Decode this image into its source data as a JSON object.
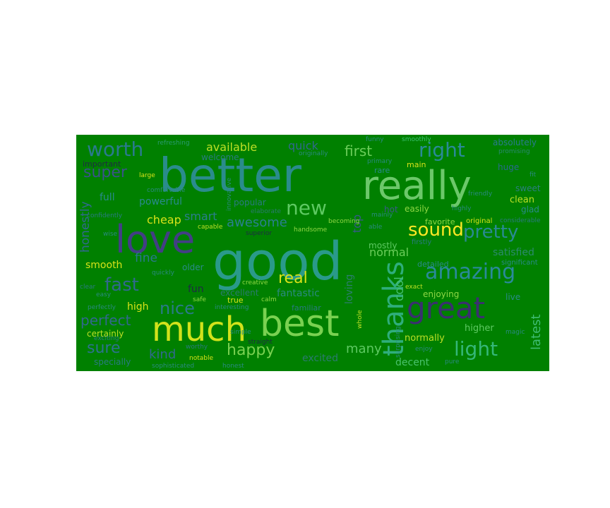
{
  "wordcloud": {
    "background": "#008000",
    "words": [
      {
        "text": "better",
        "color": "#2a8c8c"
      },
      {
        "text": "good",
        "color": "#2a9a8a"
      },
      {
        "text": "really",
        "color": "#6cc86a"
      },
      {
        "text": "love",
        "color": "#433e85"
      },
      {
        "text": "best",
        "color": "#7ad151"
      },
      {
        "text": "much",
        "color": "#d2e21b"
      },
      {
        "text": "great",
        "color": "#3b2f70"
      },
      {
        "text": "thanks",
        "color": "#2fae7c"
      },
      {
        "text": "amazing",
        "color": "#2a8a9a"
      },
      {
        "text": "worth",
        "color": "#2a7a8e"
      },
      {
        "text": "right",
        "color": "#2a8a98"
      },
      {
        "text": "new",
        "color": "#5ec962"
      },
      {
        "text": "light",
        "color": "#35b779"
      },
      {
        "text": "pretty",
        "color": "#2a8a94"
      },
      {
        "text": "sound",
        "color": "#fde725"
      },
      {
        "text": "fast",
        "color": "#31688e"
      },
      {
        "text": "nice",
        "color": "#2a7a8a"
      },
      {
        "text": "happy",
        "color": "#7ad151"
      },
      {
        "text": "super",
        "color": "#3b528b"
      },
      {
        "text": "first",
        "color": "#6ccd5a"
      },
      {
        "text": "real",
        "color": "#d8e219"
      },
      {
        "text": "awesome",
        "color": "#2a8090"
      },
      {
        "text": "perfect",
        "color": "#31688e"
      },
      {
        "text": "sure",
        "color": "#2c728e"
      },
      {
        "text": "many",
        "color": "#5ec962"
      },
      {
        "text": "kind",
        "color": "#31688e"
      },
      {
        "text": "cool",
        "color": "#44bf70"
      },
      {
        "text": "latest",
        "color": "#3fbc73"
      },
      {
        "text": "honestly",
        "color": "#31688e"
      },
      {
        "text": "available",
        "color": "#bddf26"
      },
      {
        "text": "quick",
        "color": "#31688e"
      },
      {
        "text": "top",
        "color": "#38598c"
      },
      {
        "text": "fine",
        "color": "#2a788e"
      },
      {
        "text": "smart",
        "color": "#2c7e8e"
      },
      {
        "text": "cheap",
        "color": "#d8e219"
      },
      {
        "text": "normal",
        "color": "#6ccd5a"
      },
      {
        "text": "decent",
        "color": "#4ac16d"
      },
      {
        "text": "full",
        "color": "#2a8a8e"
      },
      {
        "text": "powerful",
        "color": "#2a8a8e"
      },
      {
        "text": "fun",
        "color": "#1f2a44"
      },
      {
        "text": "high",
        "color": "#d8e219"
      },
      {
        "text": "smooth",
        "color": "#d8e219"
      },
      {
        "text": "excited",
        "color": "#2c7a70"
      },
      {
        "text": "fantastic",
        "color": "#2a8a80"
      },
      {
        "text": "loving",
        "color": "#2c7e70"
      },
      {
        "text": "satisfied",
        "color": "#2c8a6e"
      },
      {
        "text": "higher",
        "color": "#5ec962"
      },
      {
        "text": "normally",
        "color": "#bddf26"
      },
      {
        "text": "clean",
        "color": "#bddf26"
      },
      {
        "text": "easily",
        "color": "#8fd744"
      },
      {
        "text": "mostly",
        "color": "#5ec962"
      },
      {
        "text": "enjoying",
        "color": "#8fd744"
      },
      {
        "text": "popular",
        "color": "#2a7a80"
      },
      {
        "text": "excellent",
        "color": "#2a7a70"
      },
      {
        "text": "absolutely",
        "color": "#2a7a8e"
      },
      {
        "text": "hot",
        "color": "#3a5a8a"
      },
      {
        "text": "huge",
        "color": "#2a6a8e"
      },
      {
        "text": "sweet",
        "color": "#2c7e80"
      },
      {
        "text": "glad",
        "color": "#2a8a8a"
      },
      {
        "text": "favorite",
        "color": "#8fd744"
      },
      {
        "text": "detailed",
        "color": "#2a8a8a"
      },
      {
        "text": "live",
        "color": "#2a8a8a"
      },
      {
        "text": "older",
        "color": "#2a8a8a"
      },
      {
        "text": "welcome",
        "color": "#2a7a80"
      },
      {
        "text": "important",
        "color": "#1f2a44"
      },
      {
        "text": "certainly",
        "color": "#bddf26"
      },
      {
        "text": "specially",
        "color": "#2a7a80"
      },
      {
        "text": "main",
        "color": "#d8e219"
      },
      {
        "text": "rare",
        "color": "#2a8a8e"
      },
      {
        "text": "familiar",
        "color": "#2a7a80"
      },
      {
        "text": "original",
        "color": "#d8e219"
      },
      {
        "text": "significant",
        "color": "#2a8a8a"
      },
      {
        "text": "firstly",
        "color": "#2a7a80"
      },
      {
        "text": "refreshing",
        "color": "#2a9a70"
      },
      {
        "text": "originally",
        "color": "#2a8a80"
      },
      {
        "text": "primary",
        "color": "#2a8a80"
      },
      {
        "text": "funny",
        "color": "#2a8a80"
      },
      {
        "text": "smoothly",
        "color": "#3ac070"
      },
      {
        "text": "promising",
        "color": "#2a8a70"
      },
      {
        "text": "fit",
        "color": "#2a8a80"
      },
      {
        "text": "large",
        "color": "#d8e219"
      },
      {
        "text": "innovative",
        "color": "#2a8a80"
      },
      {
        "text": "elaborate",
        "color": "#2a7a70"
      },
      {
        "text": "highly",
        "color": "#2a8a80"
      },
      {
        "text": "confidently",
        "color": "#2a7a80"
      },
      {
        "text": "capable",
        "color": "#bddf26"
      },
      {
        "text": "superior",
        "color": "#1f2a44"
      },
      {
        "text": "handsome",
        "color": "#8fd744"
      },
      {
        "text": "becoming",
        "color": "#8fd744"
      },
      {
        "text": "able",
        "color": "#2a8a80"
      },
      {
        "text": "mainly",
        "color": "#2a8a80"
      },
      {
        "text": "wise",
        "color": "#2a8a80"
      },
      {
        "text": "quickly",
        "color": "#2a8a80"
      },
      {
        "text": "clear",
        "color": "#2a7a80"
      },
      {
        "text": "easy",
        "color": "#2a8a80"
      },
      {
        "text": "exact",
        "color": "#bddf26"
      },
      {
        "text": "safe",
        "color": "#8fd744"
      },
      {
        "text": "calm",
        "color": "#8fd744"
      },
      {
        "text": "true",
        "color": "#d8e219"
      },
      {
        "text": "interesting",
        "color": "#2a8a80"
      },
      {
        "text": "creative",
        "color": "#8fd744"
      },
      {
        "text": "perfectly",
        "color": "#2a8a80"
      },
      {
        "text": "exciting",
        "color": "#2a7a80"
      },
      {
        "text": "magic",
        "color": "#2a8a80"
      },
      {
        "text": "surprising",
        "color": "#2a8a80"
      },
      {
        "text": "enjoy",
        "color": "#2a8a80"
      },
      {
        "text": "pure",
        "color": "#2a8a80"
      },
      {
        "text": "whole",
        "color": "#bddf26"
      },
      {
        "text": "straight",
        "color": "#1f2a44"
      },
      {
        "text": "notable",
        "color": "#d8e219"
      },
      {
        "text": "sophisticated",
        "color": "#2a8a80"
      },
      {
        "text": "honest",
        "color": "#2a8a80"
      },
      {
        "text": "worthy",
        "color": "#2a7a80"
      },
      {
        "text": "considerable",
        "color": "#2a7a80"
      },
      {
        "text": "comfortable",
        "color": "#2a8a80"
      },
      {
        "text": "simple",
        "color": "#2a8a80"
      },
      {
        "text": "friendly",
        "color": "#2a8a80"
      }
    ]
  }
}
